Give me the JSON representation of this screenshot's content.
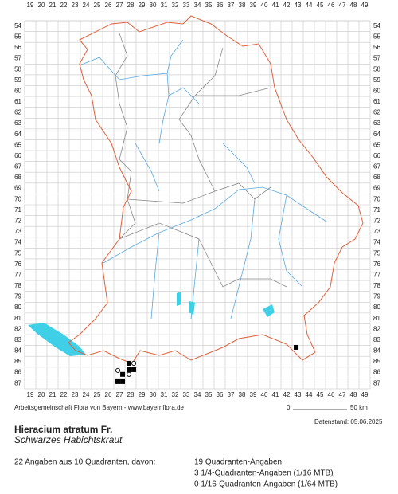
{
  "map": {
    "columns": [
      19,
      20,
      21,
      22,
      23,
      24,
      25,
      26,
      27,
      28,
      29,
      30,
      31,
      32,
      33,
      34,
      35,
      36,
      37,
      38,
      39,
      40,
      41,
      42,
      43,
      44,
      45,
      46,
      47,
      48,
      49
    ],
    "rows": [
      54,
      55,
      56,
      57,
      58,
      59,
      60,
      61,
      62,
      63,
      64,
      65,
      66,
      67,
      68,
      69,
      70,
      71,
      72,
      73,
      74,
      75,
      76,
      77,
      78,
      79,
      80,
      81,
      82,
      83,
      84,
      85,
      86,
      87
    ],
    "records": [
      {
        "x": 42.86,
        "y": 83.67,
        "shape": "square"
      },
      {
        "x": 27.86,
        "y": 85.14,
        "shape": "square"
      },
      {
        "x": 28.29,
        "y": 85.14,
        "shape": "circle"
      },
      {
        "x": 27.86,
        "y": 85.73,
        "shape": "square"
      },
      {
        "x": 28.29,
        "y": 85.73,
        "shape": "square"
      },
      {
        "x": 26.86,
        "y": 85.8,
        "shape": "circle"
      },
      {
        "x": 27.29,
        "y": 86.16,
        "shape": "square"
      },
      {
        "x": 27.86,
        "y": 86.16,
        "shape": "circle"
      },
      {
        "x": 26.86,
        "y": 86.83,
        "shape": "square"
      },
      {
        "x": 27.29,
        "y": 86.83,
        "shape": "square"
      }
    ]
  },
  "footer": {
    "credit": "Arbeitsgemeinschaft Flora von Bayern - www.bayernflora.de",
    "scale_start": "0",
    "scale_end": "50 km",
    "date": "Datenstand: 05.06.2025"
  },
  "species": {
    "name": "Hieracium atratum Fr.",
    "common_name": "Schwarzes Habichtskraut"
  },
  "stats": {
    "summary": "22 Angaben aus 10 Quadranten, davon:",
    "lines": [
      "19 Quadranten-Angaben",
      "3 1/4-Quadranten-Angaben (1/16 MTB)",
      "0 1/16-Quadranten-Angaben (1/64 MTB)"
    ]
  }
}
